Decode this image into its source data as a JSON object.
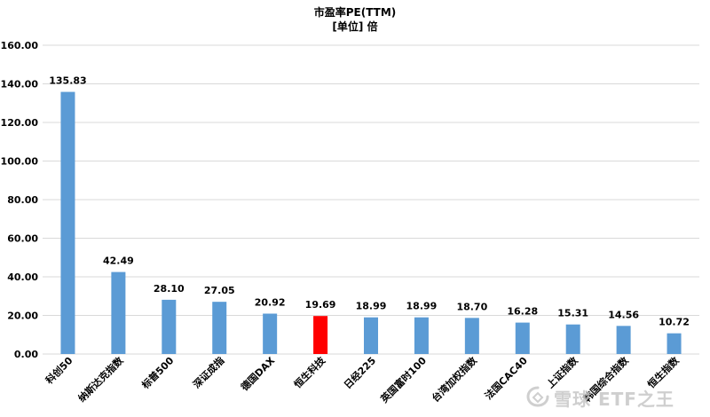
{
  "chart_data": {
    "type": "bar",
    "title": "市盈率PE(TTM)",
    "subtitle": "[单位] 倍",
    "categories": [
      "科创50",
      "纳斯达克指数",
      "标普500",
      "深证成指",
      "德国DAX",
      "恒生科技",
      "日经225",
      "英国富时100",
      "台湾加权指数",
      "法国CAC40",
      "上证指数",
      "韩国综合指数",
      "恒生指数"
    ],
    "values": [
      135.83,
      42.49,
      28.1,
      27.05,
      20.92,
      19.69,
      18.99,
      18.99,
      18.7,
      16.28,
      15.31,
      14.56,
      10.72
    ],
    "value_labels": [
      "135.83",
      "42.49",
      "28.10",
      "27.05",
      "20.92",
      "19.69",
      "18.99",
      "18.99",
      "18.70",
      "16.28",
      "15.31",
      "14.56",
      "10.72"
    ],
    "ylim": [
      0,
      160
    ],
    "yticks": [
      "0.00",
      "20.00",
      "40.00",
      "60.00",
      "80.00",
      "100.00",
      "120.00",
      "140.00",
      "160.00"
    ],
    "grid": true,
    "legend": "none",
    "colors": {
      "default_bar": "#5B9BD5",
      "highlight_bar": "#FF0000",
      "grid": "#D9D9D9"
    },
    "highlight_index": 5
  },
  "watermark": {
    "text": "雪球 ETF之王",
    "icon": "snowball-logo-icon"
  }
}
